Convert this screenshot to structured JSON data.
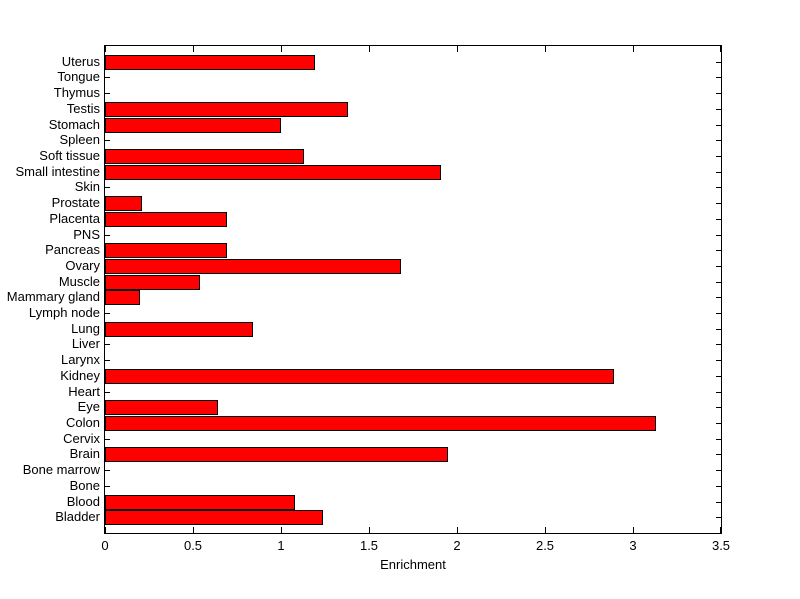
{
  "figure": {
    "background": "#ffffff"
  },
  "chart_data": {
    "type": "bar",
    "orientation": "horizontal",
    "title": "",
    "xlabel": "Enrichment",
    "ylabel": "",
    "xlim": [
      0,
      3.5
    ],
    "ylim": [
      0,
      31
    ],
    "grid": false,
    "legend": null,
    "bar_color": "#ff0000",
    "bar_edge_color": "#000000",
    "xticks": [
      0,
      0.5,
      1,
      1.5,
      2,
      2.5,
      3,
      3.5
    ],
    "xtick_labels": [
      "0",
      "0.5",
      "1",
      "1.5",
      "2",
      "2.5",
      "3",
      "3.5"
    ],
    "categories": [
      "Uterus",
      "Tongue",
      "Thymus",
      "Testis",
      "Stomach",
      "Spleen",
      "Soft tissue",
      "Small intestine",
      "Skin",
      "Prostate",
      "Placenta",
      "PNS",
      "Pancreas",
      "Ovary",
      "Muscle",
      "Mammary gland",
      "Lymph node",
      "Lung",
      "Liver",
      "Larynx",
      "Kidney",
      "Heart",
      "Eye",
      "Colon",
      "Cervix",
      "Brain",
      "Bone marrow",
      "Bone",
      "Blood",
      "Bladder"
    ],
    "values": [
      1.18,
      0,
      0,
      1.37,
      0.99,
      0,
      1.12,
      1.9,
      0,
      0.2,
      0.68,
      0,
      0.68,
      1.67,
      0.53,
      0.19,
      0,
      0.83,
      0,
      0,
      2.88,
      0,
      0.63,
      3.12,
      0,
      1.94,
      0,
      0,
      1.07,
      1.23
    ]
  }
}
